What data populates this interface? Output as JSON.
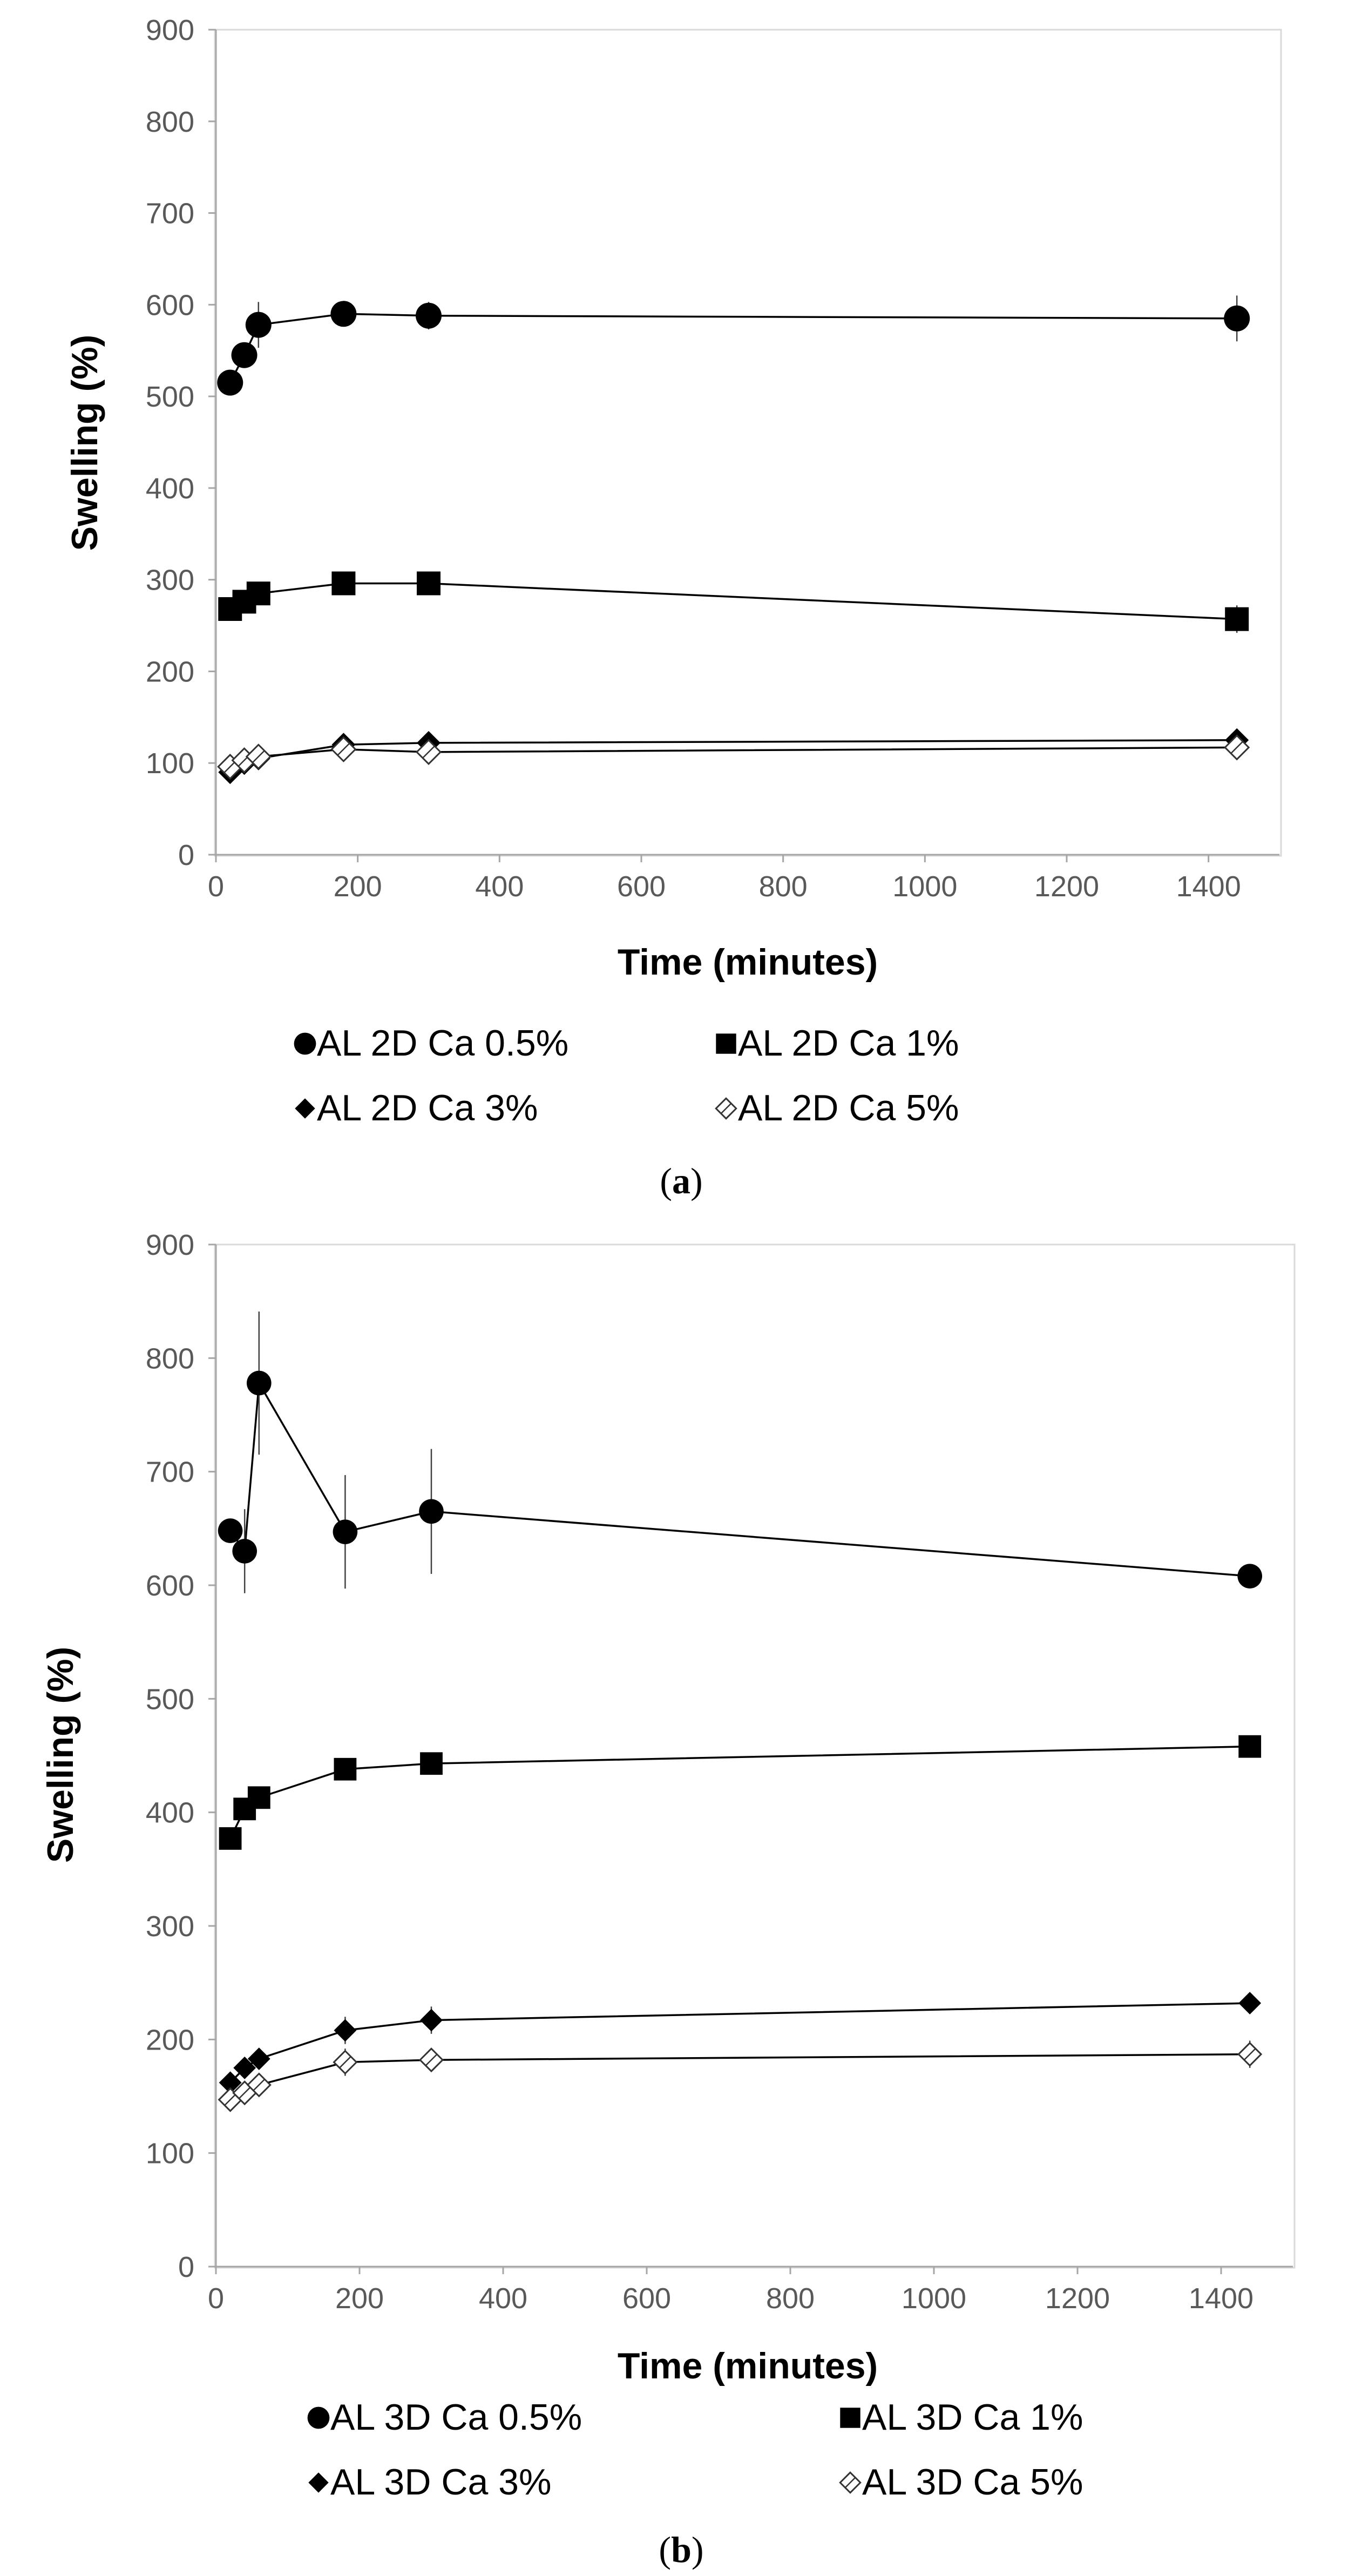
{
  "chart_data": [
    {
      "id": "a",
      "type": "line",
      "panel_label": "a",
      "xlabel": "Time (minutes)",
      "ylabel": "Swelling (%)",
      "xlim": [
        0,
        1500
      ],
      "ylim": [
        0,
        900
      ],
      "xticks": [
        0,
        200,
        400,
        600,
        800,
        1000,
        1200,
        1400
      ],
      "yticks": [
        0,
        100,
        200,
        300,
        400,
        500,
        600,
        700,
        800,
        900
      ],
      "legend_position": "bottom",
      "series": [
        {
          "name": "AL 2D Ca 0.5%",
          "marker": "circle",
          "x": [
            20,
            40,
            60,
            180,
            300,
            1440
          ],
          "y": [
            515,
            545,
            578,
            590,
            588,
            585
          ],
          "err": [
            5,
            8,
            25,
            5,
            15,
            25
          ]
        },
        {
          "name": "AL 2D Ca 1%",
          "marker": "square",
          "x": [
            20,
            40,
            60,
            180,
            300,
            1440
          ],
          "y": [
            268,
            276,
            285,
            296,
            296,
            257
          ],
          "err": [
            5,
            6,
            8,
            5,
            5,
            15
          ]
        },
        {
          "name": "AL 2D Ca 3%",
          "marker": "diamond",
          "x": [
            20,
            40,
            60,
            180,
            300,
            1440
          ],
          "y": [
            90,
            100,
            105,
            120,
            122,
            125
          ],
          "err": [
            3,
            3,
            3,
            5,
            5,
            4
          ]
        },
        {
          "name": "AL 2D Ca 5%",
          "marker": "open-diamond",
          "x": [
            20,
            40,
            60,
            180,
            300,
            1440
          ],
          "y": [
            96,
            103,
            107,
            115,
            112,
            117
          ],
          "err": [
            3,
            3,
            3,
            5,
            4,
            4
          ]
        }
      ]
    },
    {
      "id": "b",
      "type": "line",
      "panel_label": "b",
      "xlabel": "Time (minutes)",
      "ylabel": "Swelling (%)",
      "xlim": [
        0,
        1500
      ],
      "ylim": [
        0,
        900
      ],
      "xticks": [
        0,
        200,
        400,
        600,
        800,
        1000,
        1200,
        1400
      ],
      "yticks": [
        0,
        100,
        200,
        300,
        400,
        500,
        600,
        700,
        800,
        900
      ],
      "legend_position": "bottom",
      "series": [
        {
          "name": "AL 3D Ca 0.5%",
          "marker": "circle",
          "x": [
            20,
            40,
            60,
            180,
            300,
            1440
          ],
          "y": [
            648,
            630,
            778,
            647,
            665,
            608
          ],
          "err": [
            10,
            37,
            63,
            50,
            55,
            5
          ]
        },
        {
          "name": "AL 3D Ca 1%",
          "marker": "square",
          "x": [
            20,
            40,
            60,
            180,
            300,
            1440
          ],
          "y": [
            377,
            403,
            413,
            438,
            443,
            458
          ],
          "err": [
            5,
            5,
            5,
            8,
            5,
            5
          ]
        },
        {
          "name": "AL 3D Ca 3%",
          "marker": "diamond",
          "x": [
            20,
            40,
            60,
            180,
            300,
            1440
          ],
          "y": [
            162,
            175,
            183,
            208,
            217,
            232
          ],
          "err": [
            5,
            5,
            8,
            12,
            12,
            5
          ]
        },
        {
          "name": "AL 3D Ca 5%",
          "marker": "open-diamond",
          "x": [
            20,
            40,
            60,
            180,
            300,
            1440
          ],
          "y": [
            147,
            153,
            160,
            180,
            182,
            187
          ],
          "err": [
            5,
            5,
            5,
            12,
            8,
            12
          ]
        }
      ]
    }
  ]
}
